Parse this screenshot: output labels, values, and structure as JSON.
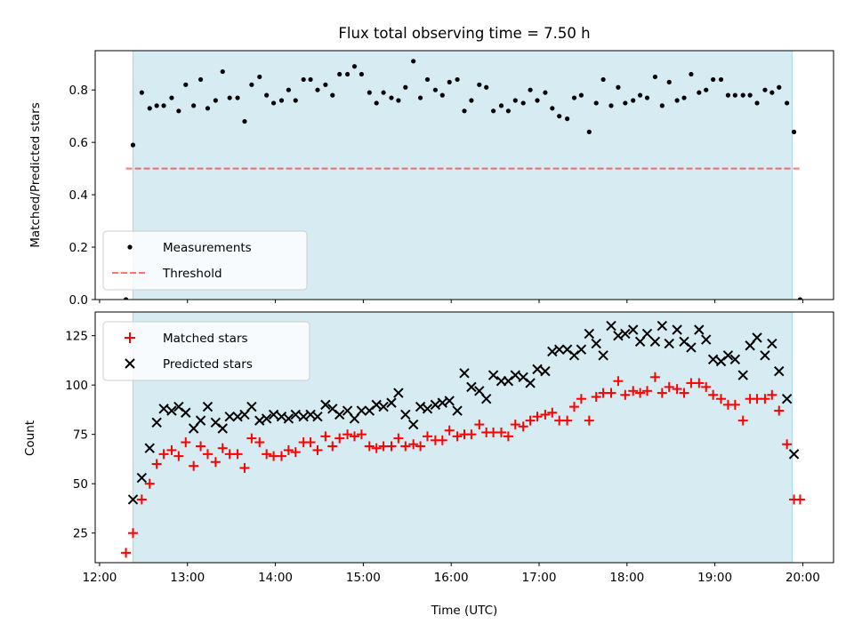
{
  "figure": {
    "title": "Flux total observing time = 7.50 h",
    "xlabel": "Time (UTC)",
    "x_ticks": [
      "12:00",
      "13:00",
      "14:00",
      "15:00",
      "16:00",
      "17:00",
      "18:00",
      "19:00",
      "20:00"
    ],
    "x_tick_values": [
      12,
      13,
      14,
      15,
      16,
      17,
      18,
      19,
      20
    ],
    "xlim": [
      11.95,
      20.35
    ],
    "observing_window": [
      12.38,
      19.88
    ],
    "colors": {
      "window_fill": "#add8e6",
      "measurements": "#000000",
      "threshold": "#ff0000",
      "matched": "#ff0000",
      "predicted": "#000000"
    }
  },
  "chart_data": [
    {
      "type": "scatter",
      "ylabel": "Matched/Predicted stars",
      "ylim": [
        0,
        0.95
      ],
      "y_ticks": [
        0.0,
        0.2,
        0.4,
        0.6,
        0.8
      ],
      "y_tick_labels": [
        "0.0",
        "0.2",
        "0.4",
        "0.6",
        "0.8"
      ],
      "legend_position": "lower-left",
      "threshold": {
        "name": "Threshold",
        "value": 0.5,
        "x_range": [
          12.3,
          19.97
        ]
      },
      "series": [
        {
          "name": "Measurements",
          "x": [
            12.3,
            12.38,
            12.48,
            12.57,
            12.65,
            12.73,
            12.82,
            12.9,
            12.98,
            13.07,
            13.15,
            13.23,
            13.32,
            13.4,
            13.48,
            13.57,
            13.65,
            13.73,
            13.82,
            13.9,
            13.98,
            14.07,
            14.15,
            14.23,
            14.32,
            14.4,
            14.48,
            14.57,
            14.65,
            14.73,
            14.82,
            14.9,
            14.98,
            15.07,
            15.15,
            15.23,
            15.32,
            15.4,
            15.48,
            15.57,
            15.65,
            15.73,
            15.82,
            15.9,
            15.98,
            16.07,
            16.15,
            16.23,
            16.32,
            16.4,
            16.48,
            16.57,
            16.65,
            16.73,
            16.82,
            16.9,
            16.98,
            17.07,
            17.15,
            17.23,
            17.32,
            17.4,
            17.48,
            17.57,
            17.65,
            17.73,
            17.82,
            17.9,
            17.98,
            18.07,
            18.15,
            18.23,
            18.32,
            18.4,
            18.48,
            18.57,
            18.65,
            18.73,
            18.82,
            18.9,
            18.98,
            19.07,
            19.15,
            19.23,
            19.32,
            19.4,
            19.48,
            19.57,
            19.65,
            19.73,
            19.82,
            19.9,
            19.97
          ],
          "y": [
            0.0,
            0.59,
            0.79,
            0.73,
            0.74,
            0.74,
            0.77,
            0.72,
            0.82,
            0.74,
            0.84,
            0.73,
            0.76,
            0.87,
            0.77,
            0.77,
            0.68,
            0.82,
            0.85,
            0.78,
            0.75,
            0.76,
            0.8,
            0.76,
            0.84,
            0.84,
            0.8,
            0.82,
            0.78,
            0.86,
            0.86,
            0.89,
            0.86,
            0.79,
            0.75,
            0.79,
            0.77,
            0.76,
            0.81,
            0.91,
            0.77,
            0.84,
            0.8,
            0.78,
            0.83,
            0.84,
            0.72,
            0.76,
            0.82,
            0.81,
            0.72,
            0.74,
            0.72,
            0.76,
            0.75,
            0.8,
            0.76,
            0.79,
            0.73,
            0.7,
            0.69,
            0.77,
            0.78,
            0.64,
            0.75,
            0.84,
            0.74,
            0.81,
            0.75,
            0.76,
            0.78,
            0.77,
            0.85,
            0.74,
            0.83,
            0.76,
            0.77,
            0.86,
            0.79,
            0.8,
            0.84,
            0.84,
            0.78,
            0.78,
            0.78,
            0.78,
            0.75,
            0.8,
            0.79,
            0.81,
            0.75,
            0.64,
            0.0
          ]
        }
      ]
    },
    {
      "type": "scatter",
      "ylabel": "Count",
      "ylim": [
        10,
        137
      ],
      "y_ticks": [
        25,
        50,
        75,
        100,
        125
      ],
      "y_tick_labels": [
        "25",
        "50",
        "75",
        "100",
        "125"
      ],
      "legend_position": "upper-left",
      "series": [
        {
          "name": "Matched stars",
          "marker": "plus",
          "x": [
            12.3,
            12.38,
            12.48,
            12.57,
            12.65,
            12.73,
            12.82,
            12.9,
            12.98,
            13.07,
            13.15,
            13.23,
            13.32,
            13.4,
            13.48,
            13.57,
            13.65,
            13.73,
            13.82,
            13.9,
            13.98,
            14.07,
            14.15,
            14.23,
            14.32,
            14.4,
            14.48,
            14.57,
            14.65,
            14.73,
            14.82,
            14.9,
            14.98,
            15.07,
            15.15,
            15.23,
            15.32,
            15.4,
            15.48,
            15.57,
            15.65,
            15.73,
            15.82,
            15.9,
            15.98,
            16.07,
            16.15,
            16.23,
            16.32,
            16.4,
            16.48,
            16.57,
            16.65,
            16.73,
            16.82,
            16.9,
            16.98,
            17.07,
            17.15,
            17.23,
            17.32,
            17.4,
            17.48,
            17.57,
            17.65,
            17.73,
            17.82,
            17.9,
            17.98,
            18.07,
            18.15,
            18.23,
            18.32,
            18.4,
            18.48,
            18.57,
            18.65,
            18.73,
            18.82,
            18.9,
            18.98,
            19.07,
            19.15,
            19.23,
            19.32,
            19.4,
            19.48,
            19.57,
            19.65,
            19.73,
            19.82,
            19.9,
            19.97
          ],
          "y": [
            15,
            25,
            42,
            50,
            60,
            65,
            67,
            64,
            71,
            59,
            69,
            65,
            61,
            68,
            65,
            65,
            58,
            73,
            71,
            65,
            64,
            64,
            67,
            66,
            71,
            71,
            67,
            74,
            69,
            73,
            75,
            74,
            75,
            69,
            68,
            69,
            69,
            73,
            69,
            70,
            69,
            74,
            72,
            72,
            77,
            74,
            75,
            75,
            80,
            76,
            76,
            76,
            74,
            80,
            79,
            82,
            84,
            85,
            86,
            82,
            82,
            89,
            93,
            82,
            94,
            96,
            96,
            102,
            95,
            97,
            96,
            97,
            104,
            96,
            99,
            98,
            96,
            101,
            101,
            99,
            95,
            93,
            90,
            90,
            82,
            93,
            93,
            93,
            95,
            87,
            70,
            42,
            42
          ]
        },
        {
          "name": "Predicted stars",
          "marker": "x",
          "x": [
            12.38,
            12.48,
            12.57,
            12.65,
            12.73,
            12.82,
            12.9,
            12.98,
            13.07,
            13.15,
            13.23,
            13.32,
            13.4,
            13.48,
            13.57,
            13.65,
            13.73,
            13.82,
            13.9,
            13.98,
            14.07,
            14.15,
            14.23,
            14.32,
            14.4,
            14.48,
            14.57,
            14.65,
            14.73,
            14.82,
            14.9,
            14.98,
            15.07,
            15.15,
            15.23,
            15.32,
            15.4,
            15.48,
            15.57,
            15.65,
            15.73,
            15.82,
            15.9,
            15.98,
            16.07,
            16.15,
            16.23,
            16.32,
            16.4,
            16.48,
            16.57,
            16.65,
            16.73,
            16.82,
            16.9,
            16.98,
            17.07,
            17.15,
            17.23,
            17.32,
            17.4,
            17.48,
            17.57,
            17.65,
            17.73,
            17.82,
            17.9,
            17.98,
            18.07,
            18.15,
            18.23,
            18.32,
            18.4,
            18.48,
            18.57,
            18.65,
            18.73,
            18.82,
            18.9,
            18.98,
            19.07,
            19.15,
            19.23,
            19.32,
            19.4,
            19.48,
            19.57,
            19.65,
            19.73,
            19.82,
            19.9
          ],
          "y": [
            42,
            53,
            68,
            81,
            88,
            87,
            89,
            86,
            78,
            82,
            89,
            81,
            78,
            84,
            84,
            85,
            89,
            82,
            83,
            85,
            84,
            83,
            85,
            84,
            85,
            84,
            90,
            88,
            85,
            87,
            83,
            87,
            87,
            90,
            89,
            91,
            96,
            85,
            80,
            89,
            88,
            90,
            91,
            92,
            87,
            106,
            99,
            97,
            93,
            105,
            102,
            102,
            105,
            104,
            101,
            108,
            107,
            117,
            118,
            118,
            115,
            118,
            126,
            121,
            115,
            130,
            125,
            126,
            128,
            122,
            126,
            122,
            130,
            121,
            128,
            122,
            119,
            128,
            123,
            113,
            112,
            115,
            113,
            105,
            120,
            124,
            115,
            121,
            107,
            93,
            65
          ]
        }
      ]
    }
  ]
}
